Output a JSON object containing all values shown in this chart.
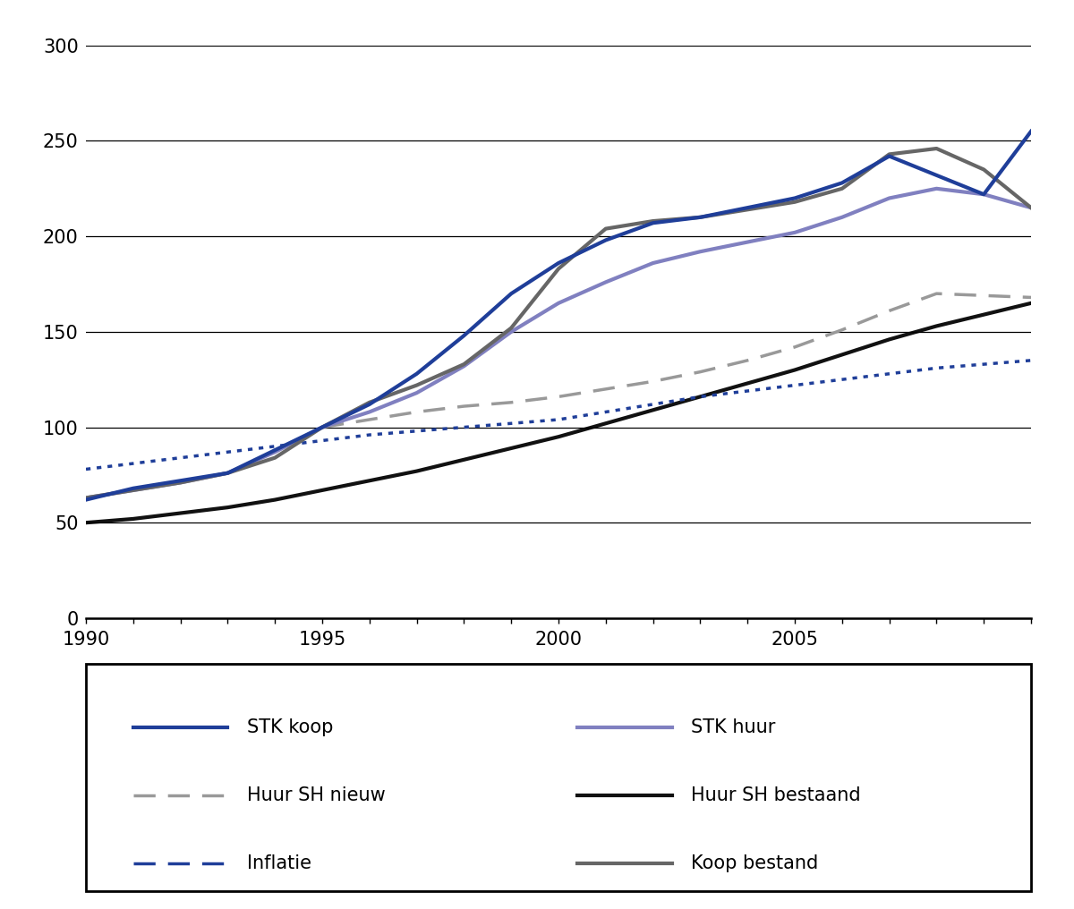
{
  "years": [
    1990,
    1991,
    1992,
    1993,
    1994,
    1995,
    1996,
    1997,
    1998,
    1999,
    2000,
    2001,
    2002,
    2003,
    2004,
    2005,
    2006,
    2007,
    2008,
    2009,
    2010
  ],
  "STK_koop": [
    62,
    68,
    72,
    76,
    88,
    100,
    112,
    128,
    148,
    170,
    186,
    198,
    207,
    210,
    215,
    220,
    228,
    242,
    232,
    222,
    255
  ],
  "STK_huur": [
    63,
    67,
    71,
    76,
    87,
    100,
    108,
    118,
    132,
    150,
    165,
    176,
    186,
    192,
    197,
    202,
    210,
    220,
    225,
    222,
    215
  ],
  "Huur_SH_nieuw": [
    null,
    null,
    null,
    null,
    null,
    100,
    104,
    108,
    111,
    113,
    116,
    120,
    124,
    129,
    135,
    142,
    151,
    161,
    170,
    169,
    168
  ],
  "Huur_SH_bestaand": [
    50,
    52,
    55,
    58,
    62,
    67,
    72,
    77,
    83,
    89,
    95,
    102,
    109,
    116,
    123,
    130,
    138,
    146,
    153,
    159,
    165
  ],
  "Inflatie": [
    78,
    81,
    84,
    87,
    90,
    93,
    96,
    98,
    100,
    102,
    104,
    108,
    112,
    116,
    119,
    122,
    125,
    128,
    131,
    133,
    135
  ],
  "Koop_bestand": [
    63,
    67,
    71,
    76,
    84,
    100,
    113,
    122,
    133,
    152,
    183,
    204,
    208,
    210,
    214,
    218,
    225,
    243,
    246,
    235,
    215
  ],
  "stk_koop_color": "#1f3e99",
  "stk_huur_color": "#8080c0",
  "huur_sh_nieuw_color": "#999999",
  "huur_sh_bestaand_color": "#111111",
  "inflatie_color": "#1f3e99",
  "koop_bestand_color": "#666666",
  "background_color": "#ffffff",
  "ylim": [
    0,
    300
  ],
  "xlim": [
    1990,
    2010
  ],
  "yticks": [
    0,
    50,
    100,
    150,
    200,
    250,
    300
  ],
  "xtick_labels": [
    1990,
    1995,
    2000,
    2005
  ],
  "all_xticks": [
    1990,
    1991,
    1992,
    1993,
    1994,
    1995,
    1996,
    1997,
    1998,
    1999,
    2000,
    2001,
    2002,
    2003,
    2004,
    2005,
    2006,
    2007,
    2008,
    2009,
    2010
  ]
}
